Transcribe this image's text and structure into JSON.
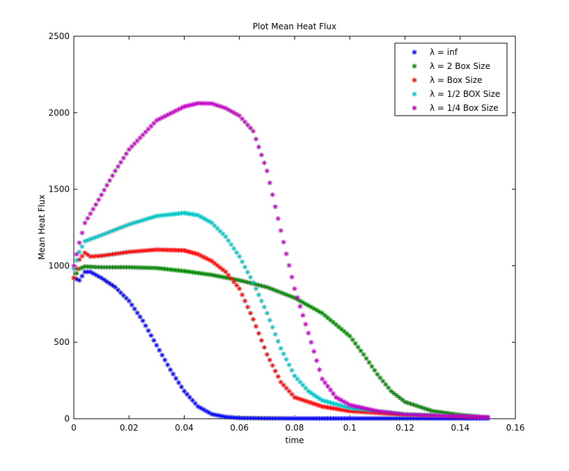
{
  "chart_data": {
    "type": "scatter",
    "title": "Plot Mean Heat Flux",
    "xlabel": "time",
    "ylabel": "Mean Heat Flux",
    "xlim": [
      0,
      0.16
    ],
    "ylim": [
      0,
      2500
    ],
    "xticks": [
      0,
      0.02,
      0.04,
      0.06,
      0.08,
      0.1,
      0.12,
      0.14,
      0.16
    ],
    "xtick_labels": [
      "0",
      "0.02",
      "0.04",
      "0.06",
      "0.08",
      "0.1",
      "0.12",
      "0.14",
      "0.16"
    ],
    "yticks": [
      0,
      500,
      1000,
      1500,
      2000,
      2500
    ],
    "ytick_labels": [
      "0",
      "500",
      "1000",
      "1500",
      "2000",
      "2500"
    ],
    "marker": "asterisk",
    "grid": false,
    "legend_position": "top-right",
    "series": [
      {
        "name": "λ = inf",
        "color": "#0000ff",
        "points": [
          [
            0,
            920
          ],
          [
            0.002,
            905
          ],
          [
            0.004,
            960
          ],
          [
            0.006,
            960
          ],
          [
            0.01,
            920
          ],
          [
            0.015,
            860
          ],
          [
            0.02,
            770
          ],
          [
            0.025,
            640
          ],
          [
            0.03,
            480
          ],
          [
            0.035,
            320
          ],
          [
            0.04,
            180
          ],
          [
            0.045,
            80
          ],
          [
            0.05,
            30
          ],
          [
            0.055,
            12
          ],
          [
            0.06,
            5
          ],
          [
            0.07,
            3
          ],
          [
            0.08,
            2
          ],
          [
            0.1,
            2
          ],
          [
            0.12,
            2
          ],
          [
            0.15,
            2
          ]
        ]
      },
      {
        "name": "λ = 2 Box Size",
        "color": "#008000",
        "points": [
          [
            0,
            920
          ],
          [
            0.002,
            980
          ],
          [
            0.004,
            995
          ],
          [
            0.01,
            990
          ],
          [
            0.02,
            990
          ],
          [
            0.03,
            985
          ],
          [
            0.04,
            965
          ],
          [
            0.05,
            940
          ],
          [
            0.06,
            905
          ],
          [
            0.07,
            860
          ],
          [
            0.08,
            790
          ],
          [
            0.09,
            690
          ],
          [
            0.1,
            540
          ],
          [
            0.105,
            420
          ],
          [
            0.11,
            290
          ],
          [
            0.115,
            180
          ],
          [
            0.12,
            110
          ],
          [
            0.13,
            50
          ],
          [
            0.14,
            25
          ],
          [
            0.15,
            10
          ]
        ]
      },
      {
        "name": "λ = Box Size",
        "color": "#ff0000",
        "points": [
          [
            0,
            920
          ],
          [
            0.002,
            1040
          ],
          [
            0.004,
            1085
          ],
          [
            0.006,
            1060
          ],
          [
            0.01,
            1065
          ],
          [
            0.02,
            1090
          ],
          [
            0.03,
            1105
          ],
          [
            0.04,
            1100
          ],
          [
            0.045,
            1075
          ],
          [
            0.05,
            1030
          ],
          [
            0.055,
            960
          ],
          [
            0.06,
            850
          ],
          [
            0.065,
            650
          ],
          [
            0.07,
            420
          ],
          [
            0.075,
            240
          ],
          [
            0.08,
            140
          ],
          [
            0.09,
            80
          ],
          [
            0.1,
            50
          ],
          [
            0.12,
            25
          ],
          [
            0.15,
            10
          ]
        ]
      },
      {
        "name": "λ = 1/2 BOX Size",
        "color": "#00bfbf",
        "points": [
          [
            0,
            980
          ],
          [
            0.002,
            1090
          ],
          [
            0.004,
            1160
          ],
          [
            0.01,
            1200
          ],
          [
            0.02,
            1270
          ],
          [
            0.03,
            1325
          ],
          [
            0.04,
            1345
          ],
          [
            0.045,
            1330
          ],
          [
            0.05,
            1280
          ],
          [
            0.055,
            1190
          ],
          [
            0.06,
            1060
          ],
          [
            0.065,
            890
          ],
          [
            0.07,
            690
          ],
          [
            0.075,
            460
          ],
          [
            0.08,
            280
          ],
          [
            0.085,
            180
          ],
          [
            0.09,
            120
          ],
          [
            0.1,
            70
          ],
          [
            0.12,
            30
          ],
          [
            0.15,
            10
          ]
        ]
      },
      {
        "name": "λ = 1/4 Box Size",
        "color": "#bf00bf",
        "points": [
          [
            0,
            1000
          ],
          [
            0.002,
            1150
          ],
          [
            0.004,
            1280
          ],
          [
            0.008,
            1400
          ],
          [
            0.015,
            1620
          ],
          [
            0.02,
            1760
          ],
          [
            0.03,
            1950
          ],
          [
            0.04,
            2040
          ],
          [
            0.045,
            2062
          ],
          [
            0.05,
            2060
          ],
          [
            0.055,
            2030
          ],
          [
            0.06,
            1980
          ],
          [
            0.065,
            1880
          ],
          [
            0.07,
            1620
          ],
          [
            0.075,
            1230
          ],
          [
            0.08,
            850
          ],
          [
            0.085,
            560
          ],
          [
            0.09,
            260
          ],
          [
            0.095,
            140
          ],
          [
            0.1,
            90
          ],
          [
            0.11,
            50
          ],
          [
            0.12,
            28
          ],
          [
            0.15,
            10
          ]
        ]
      }
    ]
  }
}
